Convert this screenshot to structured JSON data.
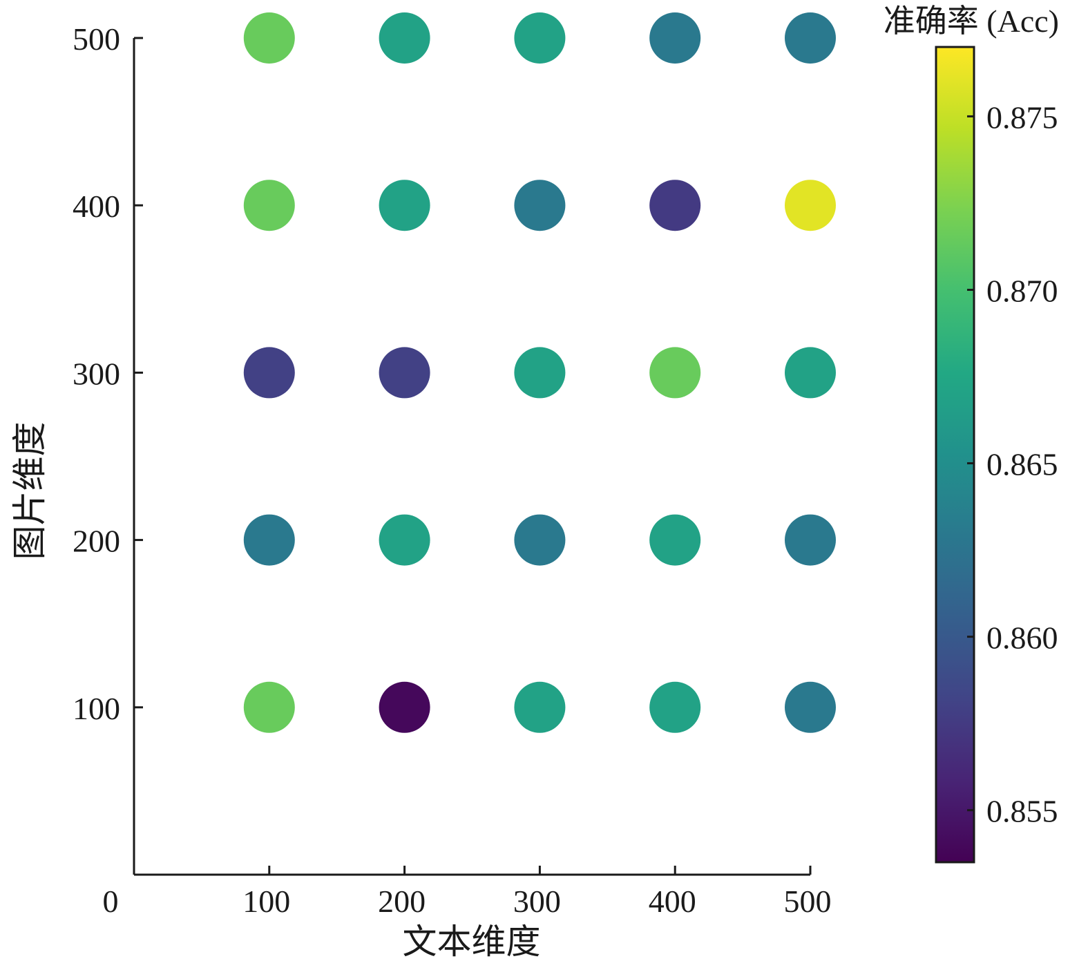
{
  "chart_data": {
    "type": "scatter",
    "xlabel": "文本维度",
    "ylabel": "图片维度",
    "xlim": [
      0,
      500
    ],
    "ylim": [
      0,
      500
    ],
    "x_ticks": [
      100,
      200,
      300,
      400,
      500
    ],
    "y_ticks": [
      100,
      200,
      300,
      400,
      500
    ],
    "origin_label": "0",
    "colorbar": {
      "title": "准确率 (Acc)",
      "range": [
        0.8535,
        0.877
      ],
      "ticks": [
        0.855,
        0.86,
        0.865,
        0.87,
        0.875
      ],
      "tick_labels": [
        "0.855",
        "0.860",
        "0.865",
        "0.870",
        "0.875"
      ],
      "colormap": "viridis"
    },
    "points": [
      {
        "x": 100,
        "y": 500,
        "acc": 0.8715
      },
      {
        "x": 200,
        "y": 500,
        "acc": 0.867
      },
      {
        "x": 300,
        "y": 500,
        "acc": 0.867
      },
      {
        "x": 400,
        "y": 500,
        "acc": 0.863
      },
      {
        "x": 500,
        "y": 500,
        "acc": 0.863
      },
      {
        "x": 100,
        "y": 400,
        "acc": 0.8715
      },
      {
        "x": 200,
        "y": 400,
        "acc": 0.867
      },
      {
        "x": 300,
        "y": 400,
        "acc": 0.863
      },
      {
        "x": 400,
        "y": 400,
        "acc": 0.8575
      },
      {
        "x": 500,
        "y": 400,
        "acc": 0.876
      },
      {
        "x": 100,
        "y": 300,
        "acc": 0.858
      },
      {
        "x": 200,
        "y": 300,
        "acc": 0.858
      },
      {
        "x": 300,
        "y": 300,
        "acc": 0.867
      },
      {
        "x": 400,
        "y": 300,
        "acc": 0.8715
      },
      {
        "x": 500,
        "y": 300,
        "acc": 0.867
      },
      {
        "x": 100,
        "y": 200,
        "acc": 0.863
      },
      {
        "x": 200,
        "y": 200,
        "acc": 0.867
      },
      {
        "x": 300,
        "y": 200,
        "acc": 0.863
      },
      {
        "x": 400,
        "y": 200,
        "acc": 0.867
      },
      {
        "x": 500,
        "y": 200,
        "acc": 0.863
      },
      {
        "x": 100,
        "y": 100,
        "acc": 0.8715
      },
      {
        "x": 200,
        "y": 100,
        "acc": 0.854
      },
      {
        "x": 300,
        "y": 100,
        "acc": 0.867
      },
      {
        "x": 400,
        "y": 100,
        "acc": 0.867
      },
      {
        "x": 500,
        "y": 100,
        "acc": 0.863
      }
    ]
  }
}
